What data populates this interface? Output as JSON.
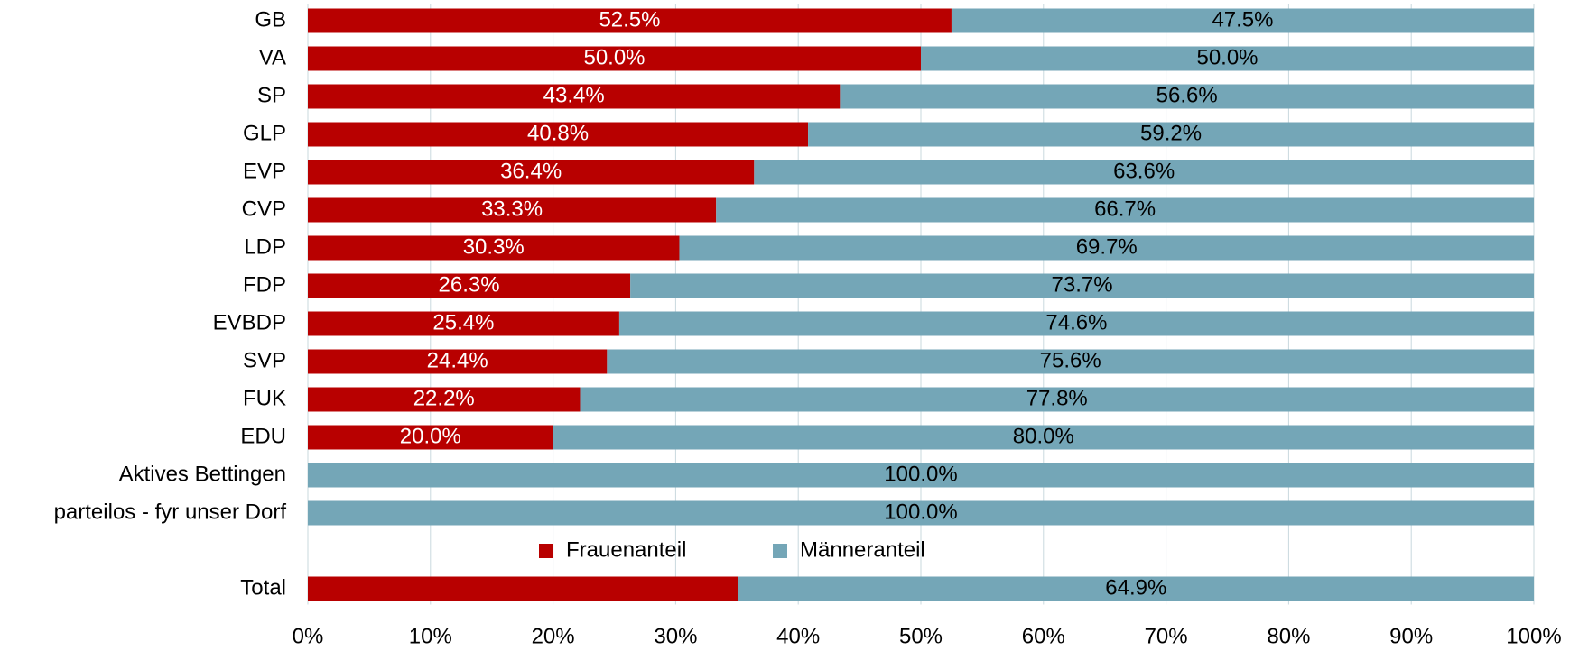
{
  "chart_data": {
    "type": "stacked_barh",
    "categories": [
      "GB",
      "VA",
      "SP",
      "GLP",
      "EVP",
      "CVP",
      "LDP",
      "FDP",
      "EVBDP",
      "SVP",
      "FUK",
      "EDU",
      "Aktives Bettingen",
      "parteilos - fyr unser Dorf",
      null,
      "Total"
    ],
    "series": [
      {
        "name": "Frauenanteil",
        "color": "#b80000",
        "label_color": "#ffffff",
        "values": [
          52.5,
          50.0,
          43.4,
          40.8,
          36.4,
          33.3,
          30.3,
          26.3,
          25.4,
          24.4,
          22.2,
          20.0,
          0,
          0,
          null,
          35.1
        ],
        "value_labels": [
          "52.5%",
          "50.0%",
          "43.4%",
          "40.8%",
          "36.4%",
          "33.3%",
          "30.3%",
          "26.3%",
          "25.4%",
          "24.4%",
          "22.2%",
          "20.0%",
          null,
          null,
          null,
          null
        ]
      },
      {
        "name": "Männeranteil",
        "color": "#74a6b7",
        "label_color": "#000000",
        "values": [
          47.5,
          50.0,
          56.6,
          59.2,
          63.6,
          66.7,
          69.7,
          73.7,
          74.6,
          75.6,
          77.8,
          80.0,
          100.0,
          100.0,
          null,
          64.9
        ],
        "value_labels": [
          "47.5%",
          "50.0%",
          "56.6%",
          "59.2%",
          "63.6%",
          "66.7%",
          "69.7%",
          "73.7%",
          "74.6%",
          "75.6%",
          "77.8%",
          "80.0%",
          "100.0%",
          "100.0%",
          null,
          "64.9%"
        ]
      }
    ],
    "xlim": [
      0,
      100
    ],
    "xticks": [
      {
        "value": 0,
        "label": "0%"
      },
      {
        "value": 10,
        "label": "10%"
      },
      {
        "value": 20,
        "label": "20%"
      },
      {
        "value": 30,
        "label": "30%"
      },
      {
        "value": 40,
        "label": "40%"
      },
      {
        "value": 50,
        "label": "50%"
      },
      {
        "value": 60,
        "label": "60%"
      },
      {
        "value": 70,
        "label": "70%"
      },
      {
        "value": 80,
        "label": "80%"
      },
      {
        "value": 90,
        "label": "90%"
      },
      {
        "value": 100,
        "label": "100%"
      }
    ],
    "grid": true
  }
}
